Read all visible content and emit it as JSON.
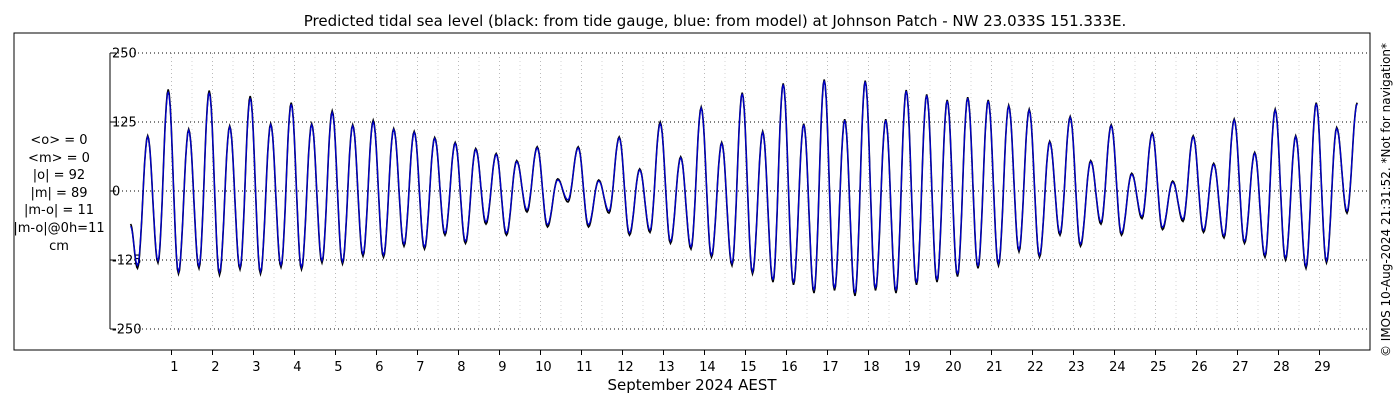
{
  "chart_data": {
    "type": "line",
    "title": "Predicted tidal sea level (black: from tide gauge, blue: from model) at Johnson Patch - NW 23.033S 151.333E.",
    "xlabel": "September 2024 AEST",
    "ylabel": "",
    "ylim": [
      -250,
      250
    ],
    "y_ticks": [
      250,
      125,
      0,
      -125,
      -250
    ],
    "x_tick_labels": [
      "1",
      "2",
      "3",
      "4",
      "5",
      "6",
      "7",
      "8",
      "9",
      "10",
      "11",
      "12",
      "13",
      "14",
      "15",
      "16",
      "17",
      "18",
      "19",
      "20",
      "21",
      "22",
      "23",
      "24",
      "25",
      "26",
      "27",
      "28",
      "29"
    ],
    "grid": true,
    "series": [
      {
        "name": "black: from tide gauge",
        "color": "#000000",
        "highs": [
          [
            0.42,
            100
          ],
          [
            0.92,
            184
          ],
          [
            1.42,
            112
          ],
          [
            1.92,
            182
          ],
          [
            2.42,
            118
          ],
          [
            2.92,
            172
          ],
          [
            3.42,
            122
          ],
          [
            3.92,
            160
          ],
          [
            4.42,
            122
          ],
          [
            4.92,
            145
          ],
          [
            5.42,
            120
          ],
          [
            5.92,
            128
          ],
          [
            6.42,
            113
          ],
          [
            6.92,
            108
          ],
          [
            7.42,
            97
          ],
          [
            7.92,
            88
          ],
          [
            8.42,
            77
          ],
          [
            8.92,
            68
          ],
          [
            9.42,
            55
          ],
          [
            9.92,
            80
          ],
          [
            10.42,
            22
          ],
          [
            10.92,
            80
          ],
          [
            11.42,
            20
          ],
          [
            11.92,
            98
          ],
          [
            12.42,
            40
          ],
          [
            12.92,
            125
          ],
          [
            13.42,
            62
          ],
          [
            13.92,
            152
          ],
          [
            14.42,
            88
          ],
          [
            14.92,
            178
          ],
          [
            15.42,
            108
          ],
          [
            15.92,
            195
          ],
          [
            16.42,
            122
          ],
          [
            16.92,
            202
          ],
          [
            17.42,
            130
          ],
          [
            17.92,
            200
          ],
          [
            18.42,
            130
          ],
          [
            18.92,
            183
          ],
          [
            19.42,
            175
          ],
          [
            19.92,
            165
          ],
          [
            20.42,
            170
          ],
          [
            20.92,
            165
          ],
          [
            21.42,
            155
          ],
          [
            21.92,
            148
          ],
          [
            22.42,
            90
          ],
          [
            22.92,
            135
          ],
          [
            23.42,
            55
          ],
          [
            23.92,
            120
          ],
          [
            24.42,
            32
          ],
          [
            24.92,
            105
          ],
          [
            25.42,
            18
          ],
          [
            25.92,
            100
          ],
          [
            26.42,
            50
          ],
          [
            26.92,
            130
          ],
          [
            27.42,
            70
          ],
          [
            27.92,
            148
          ],
          [
            28.42,
            100
          ],
          [
            28.92,
            160
          ],
          [
            29.42,
            115
          ],
          [
            29.92,
            160
          ]
        ],
        "lows": [
          [
            0.17,
            -140
          ],
          [
            0.67,
            -130
          ],
          [
            1.17,
            -150
          ],
          [
            1.67,
            -140
          ],
          [
            2.17,
            -152
          ],
          [
            2.67,
            -142
          ],
          [
            3.17,
            -150
          ],
          [
            3.67,
            -138
          ],
          [
            4.17,
            -142
          ],
          [
            4.67,
            -130
          ],
          [
            5.17,
            -132
          ],
          [
            5.67,
            -118
          ],
          [
            6.17,
            -120
          ],
          [
            6.67,
            -100
          ],
          [
            7.17,
            -105
          ],
          [
            7.67,
            -80
          ],
          [
            8.17,
            -95
          ],
          [
            8.67,
            -60
          ],
          [
            9.17,
            -80
          ],
          [
            9.67,
            -38
          ],
          [
            10.17,
            -65
          ],
          [
            10.67,
            -20
          ],
          [
            11.17,
            -65
          ],
          [
            11.67,
            -40
          ],
          [
            12.17,
            -80
          ],
          [
            12.67,
            -75
          ],
          [
            13.17,
            -95
          ],
          [
            13.67,
            -105
          ],
          [
            14.17,
            -120
          ],
          [
            14.67,
            -135
          ],
          [
            15.17,
            -150
          ],
          [
            15.67,
            -165
          ],
          [
            16.17,
            -170
          ],
          [
            16.67,
            -185
          ],
          [
            17.17,
            -180
          ],
          [
            17.67,
            -190
          ],
          [
            18.17,
            -180
          ],
          [
            18.67,
            -185
          ],
          [
            19.17,
            -170
          ],
          [
            19.67,
            -165
          ],
          [
            20.17,
            -155
          ],
          [
            20.67,
            -140
          ],
          [
            21.17,
            -135
          ],
          [
            21.67,
            -110
          ],
          [
            22.17,
            -120
          ],
          [
            22.67,
            -80
          ],
          [
            23.17,
            -100
          ],
          [
            23.67,
            -60
          ],
          [
            24.17,
            -80
          ],
          [
            24.67,
            -50
          ],
          [
            25.17,
            -70
          ],
          [
            25.67,
            -55
          ],
          [
            26.17,
            -75
          ],
          [
            26.67,
            -85
          ],
          [
            27.17,
            -95
          ],
          [
            27.67,
            -120
          ],
          [
            28.17,
            -125
          ],
          [
            28.67,
            -140
          ],
          [
            29.17,
            -130
          ],
          [
            29.67,
            -40
          ]
        ]
      },
      {
        "name": "blue: from model",
        "color": "#0000cc",
        "highs": [
          [
            0.42,
            98
          ],
          [
            0.92,
            180
          ],
          [
            1.42,
            110
          ],
          [
            1.92,
            178
          ],
          [
            2.42,
            116
          ],
          [
            2.92,
            168
          ],
          [
            3.42,
            120
          ],
          [
            3.92,
            157
          ],
          [
            4.42,
            120
          ],
          [
            4.92,
            142
          ],
          [
            5.42,
            118
          ],
          [
            5.92,
            125
          ],
          [
            6.42,
            111
          ],
          [
            6.92,
            106
          ],
          [
            7.42,
            95
          ],
          [
            7.92,
            86
          ],
          [
            8.42,
            75
          ],
          [
            8.92,
            66
          ],
          [
            9.42,
            53
          ],
          [
            9.92,
            78
          ],
          [
            10.42,
            20
          ],
          [
            10.92,
            78
          ],
          [
            11.42,
            18
          ],
          [
            11.92,
            96
          ],
          [
            12.42,
            38
          ],
          [
            12.92,
            122
          ],
          [
            13.42,
            60
          ],
          [
            13.92,
            150
          ],
          [
            14.42,
            86
          ],
          [
            14.92,
            176
          ],
          [
            15.42,
            106
          ],
          [
            15.92,
            193
          ],
          [
            16.42,
            120
          ],
          [
            16.92,
            200
          ],
          [
            17.42,
            128
          ],
          [
            17.92,
            198
          ],
          [
            18.42,
            128
          ],
          [
            18.92,
            181
          ],
          [
            19.42,
            173
          ],
          [
            19.92,
            163
          ],
          [
            20.42,
            168
          ],
          [
            20.92,
            163
          ],
          [
            21.42,
            153
          ],
          [
            21.92,
            146
          ],
          [
            22.42,
            88
          ],
          [
            22.92,
            133
          ],
          [
            23.42,
            53
          ],
          [
            23.92,
            118
          ],
          [
            24.42,
            30
          ],
          [
            24.92,
            103
          ],
          [
            25.42,
            16
          ],
          [
            25.92,
            98
          ],
          [
            26.42,
            48
          ],
          [
            26.92,
            128
          ],
          [
            27.42,
            68
          ],
          [
            27.92,
            146
          ],
          [
            28.42,
            98
          ],
          [
            28.92,
            158
          ],
          [
            29.42,
            113
          ],
          [
            29.92,
            158
          ]
        ],
        "lows": [
          [
            0.17,
            -135
          ],
          [
            0.67,
            -126
          ],
          [
            1.17,
            -146
          ],
          [
            1.67,
            -136
          ],
          [
            2.17,
            -147
          ],
          [
            2.67,
            -138
          ],
          [
            3.17,
            -146
          ],
          [
            3.67,
            -134
          ],
          [
            4.17,
            -138
          ],
          [
            4.67,
            -126
          ],
          [
            5.17,
            -128
          ],
          [
            5.67,
            -114
          ],
          [
            6.17,
            -116
          ],
          [
            6.67,
            -96
          ],
          [
            7.17,
            -101
          ],
          [
            7.67,
            -76
          ],
          [
            8.17,
            -91
          ],
          [
            8.67,
            -56
          ],
          [
            9.17,
            -76
          ],
          [
            9.67,
            -34
          ],
          [
            10.17,
            -61
          ],
          [
            10.67,
            -16
          ],
          [
            11.17,
            -61
          ],
          [
            11.67,
            -36
          ],
          [
            12.17,
            -76
          ],
          [
            12.67,
            -71
          ],
          [
            13.17,
            -91
          ],
          [
            13.67,
            -101
          ],
          [
            14.17,
            -116
          ],
          [
            14.67,
            -131
          ],
          [
            15.17,
            -146
          ],
          [
            15.67,
            -161
          ],
          [
            16.17,
            -166
          ],
          [
            16.67,
            -180
          ],
          [
            17.17,
            -176
          ],
          [
            17.67,
            -185
          ],
          [
            18.17,
            -176
          ],
          [
            18.67,
            -180
          ],
          [
            19.17,
            -166
          ],
          [
            19.67,
            -161
          ],
          [
            20.17,
            -151
          ],
          [
            20.67,
            -136
          ],
          [
            21.17,
            -131
          ],
          [
            21.67,
            -106
          ],
          [
            22.17,
            -116
          ],
          [
            22.67,
            -76
          ],
          [
            23.17,
            -96
          ],
          [
            23.67,
            -56
          ],
          [
            24.17,
            -76
          ],
          [
            24.67,
            -46
          ],
          [
            25.17,
            -66
          ],
          [
            25.67,
            -51
          ],
          [
            26.17,
            -71
          ],
          [
            26.67,
            -81
          ],
          [
            27.17,
            -91
          ],
          [
            27.67,
            -116
          ],
          [
            28.17,
            -121
          ],
          [
            28.67,
            -136
          ],
          [
            29.17,
            -126
          ],
          [
            29.67,
            -36
          ]
        ]
      }
    ]
  },
  "stats": {
    "mean_obs": "<o> = 0",
    "mean_model": "<m> = 0",
    "abs_obs": "|o| = 92",
    "abs_model": "|m| = 89",
    "abs_diff": "|m-o| = 11",
    "abs_diff_0h": "|m-o|@0h=11",
    "unit": "cm"
  },
  "side_note": "© IMOS 10-Aug-2024 21:31:52. *Not for navigation*"
}
